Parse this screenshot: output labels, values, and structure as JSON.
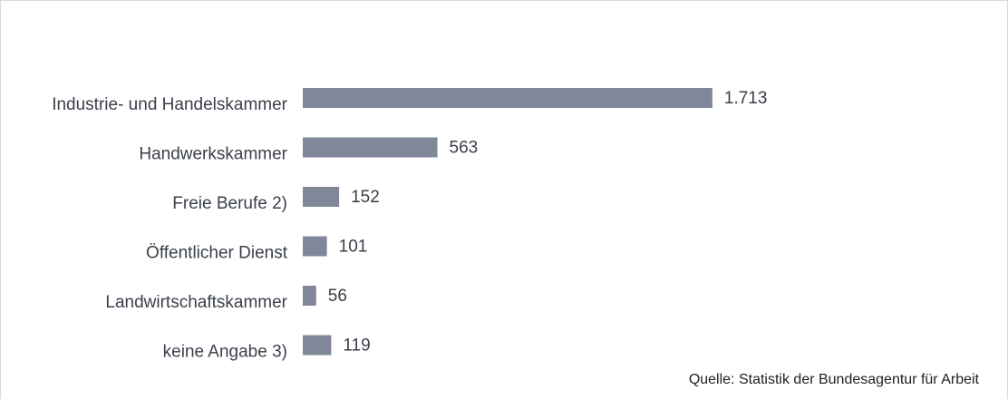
{
  "chart_data": {
    "type": "bar",
    "orientation": "horizontal",
    "categories": [
      "Industrie- und Handelskammer",
      "Handwerkskammer",
      "Freie Berufe 2)",
      "Öffentlicher Dienst",
      "Landwirtschaftskammer",
      "keine Angabe 3)"
    ],
    "values": [
      1713,
      563,
      152,
      101,
      56,
      119
    ],
    "value_labels": [
      "1.713",
      "563",
      "152",
      "101",
      "56",
      "119"
    ],
    "bar_color": "#7f8798",
    "grid": false,
    "legend": "none"
  },
  "source": "Quelle: Statistik der Bundesagentur für Arbeit"
}
